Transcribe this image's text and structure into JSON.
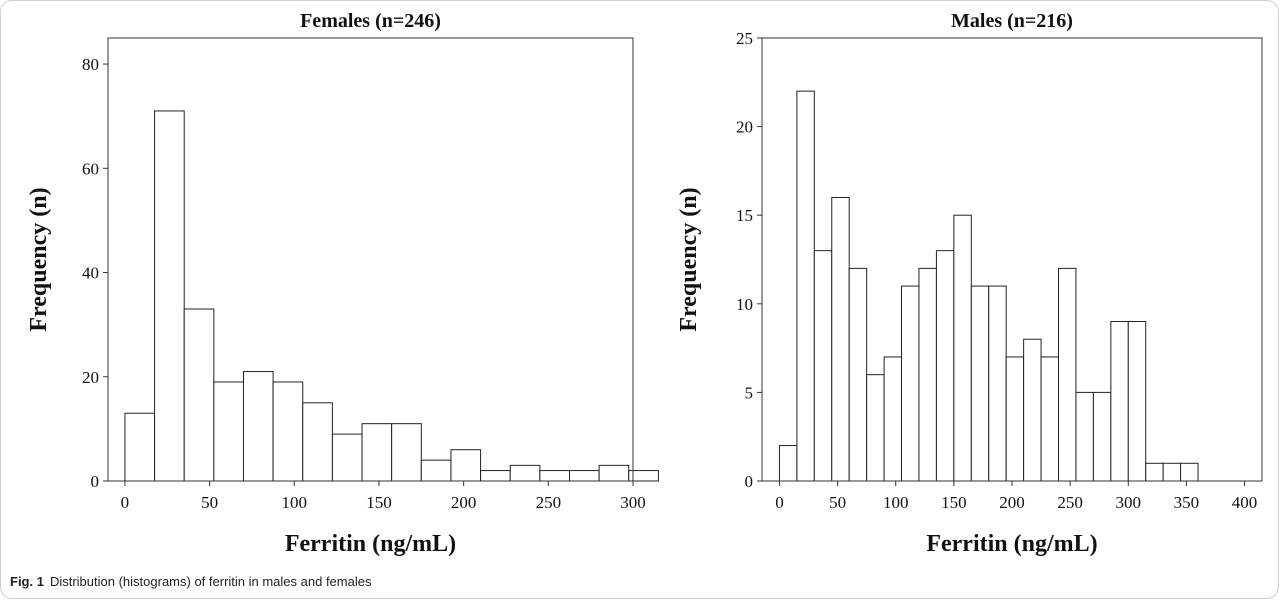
{
  "figure": {
    "caption_label": "Fig. 1",
    "caption_text": "Distribution (histograms) of ferritin in males and females"
  },
  "chart_data": [
    {
      "type": "bar",
      "title": "Females (n=246)",
      "xlabel": "Ferritin (ng/mL)",
      "ylabel": "Frequency (n)",
      "xlim": [
        -10,
        300
      ],
      "ylim": [
        0,
        85
      ],
      "xticks": [
        0,
        50,
        100,
        150,
        200,
        250,
        300
      ],
      "yticks": [
        0,
        20,
        40,
        60,
        80
      ],
      "bin_width": 17.5,
      "bins": [
        {
          "x0": 0,
          "x1": 17.5,
          "y": 13
        },
        {
          "x0": 17.5,
          "x1": 35,
          "y": 71
        },
        {
          "x0": 35,
          "x1": 52.5,
          "y": 33
        },
        {
          "x0": 52.5,
          "x1": 70,
          "y": 19
        },
        {
          "x0": 70,
          "x1": 87.5,
          "y": 21
        },
        {
          "x0": 87.5,
          "x1": 105,
          "y": 19
        },
        {
          "x0": 105,
          "x1": 122.5,
          "y": 15
        },
        {
          "x0": 122.5,
          "x1": 140,
          "y": 9
        },
        {
          "x0": 140,
          "x1": 157.5,
          "y": 11
        },
        {
          "x0": 157.5,
          "x1": 175,
          "y": 11
        },
        {
          "x0": 175,
          "x1": 192.5,
          "y": 4
        },
        {
          "x0": 192.5,
          "x1": 210,
          "y": 6
        },
        {
          "x0": 210,
          "x1": 227.5,
          "y": 2
        },
        {
          "x0": 227.5,
          "x1": 245,
          "y": 3
        },
        {
          "x0": 245,
          "x1": 262.5,
          "y": 2
        },
        {
          "x0": 262.5,
          "x1": 280,
          "y": 2
        },
        {
          "x0": 280,
          "x1": 297.5,
          "y": 3
        },
        {
          "x0": 297.5,
          "x1": 315,
          "y": 2
        }
      ]
    },
    {
      "type": "bar",
      "title": "Males (n=216)",
      "xlabel": "Ferritin (ng/mL)",
      "ylabel": "Frequency (n)",
      "xlim": [
        -15,
        415
      ],
      "ylim": [
        0,
        25
      ],
      "xticks": [
        0,
        50,
        100,
        150,
        200,
        250,
        300,
        350,
        400
      ],
      "yticks": [
        0,
        5,
        10,
        15,
        20,
        25
      ],
      "bin_width": 15,
      "bins": [
        {
          "x0": 0,
          "x1": 15,
          "y": 2
        },
        {
          "x0": 15,
          "x1": 30,
          "y": 22
        },
        {
          "x0": 30,
          "x1": 45,
          "y": 13
        },
        {
          "x0": 45,
          "x1": 60,
          "y": 16
        },
        {
          "x0": 60,
          "x1": 75,
          "y": 12
        },
        {
          "x0": 75,
          "x1": 90,
          "y": 6
        },
        {
          "x0": 90,
          "x1": 105,
          "y": 7
        },
        {
          "x0": 105,
          "x1": 120,
          "y": 11
        },
        {
          "x0": 120,
          "x1": 135,
          "y": 12
        },
        {
          "x0": 135,
          "x1": 150,
          "y": 13
        },
        {
          "x0": 150,
          "x1": 165,
          "y": 15
        },
        {
          "x0": 165,
          "x1": 180,
          "y": 11
        },
        {
          "x0": 180,
          "x1": 195,
          "y": 11
        },
        {
          "x0": 195,
          "x1": 210,
          "y": 7
        },
        {
          "x0": 210,
          "x1": 225,
          "y": 8
        },
        {
          "x0": 225,
          "x1": 240,
          "y": 7
        },
        {
          "x0": 240,
          "x1": 255,
          "y": 12
        },
        {
          "x0": 255,
          "x1": 270,
          "y": 5
        },
        {
          "x0": 270,
          "x1": 285,
          "y": 5
        },
        {
          "x0": 285,
          "x1": 300,
          "y": 9
        },
        {
          "x0": 300,
          "x1": 315,
          "y": 9
        },
        {
          "x0": 315,
          "x1": 330,
          "y": 1
        },
        {
          "x0": 330,
          "x1": 345,
          "y": 1
        },
        {
          "x0": 345,
          "x1": 360,
          "y": 1
        }
      ]
    }
  ]
}
